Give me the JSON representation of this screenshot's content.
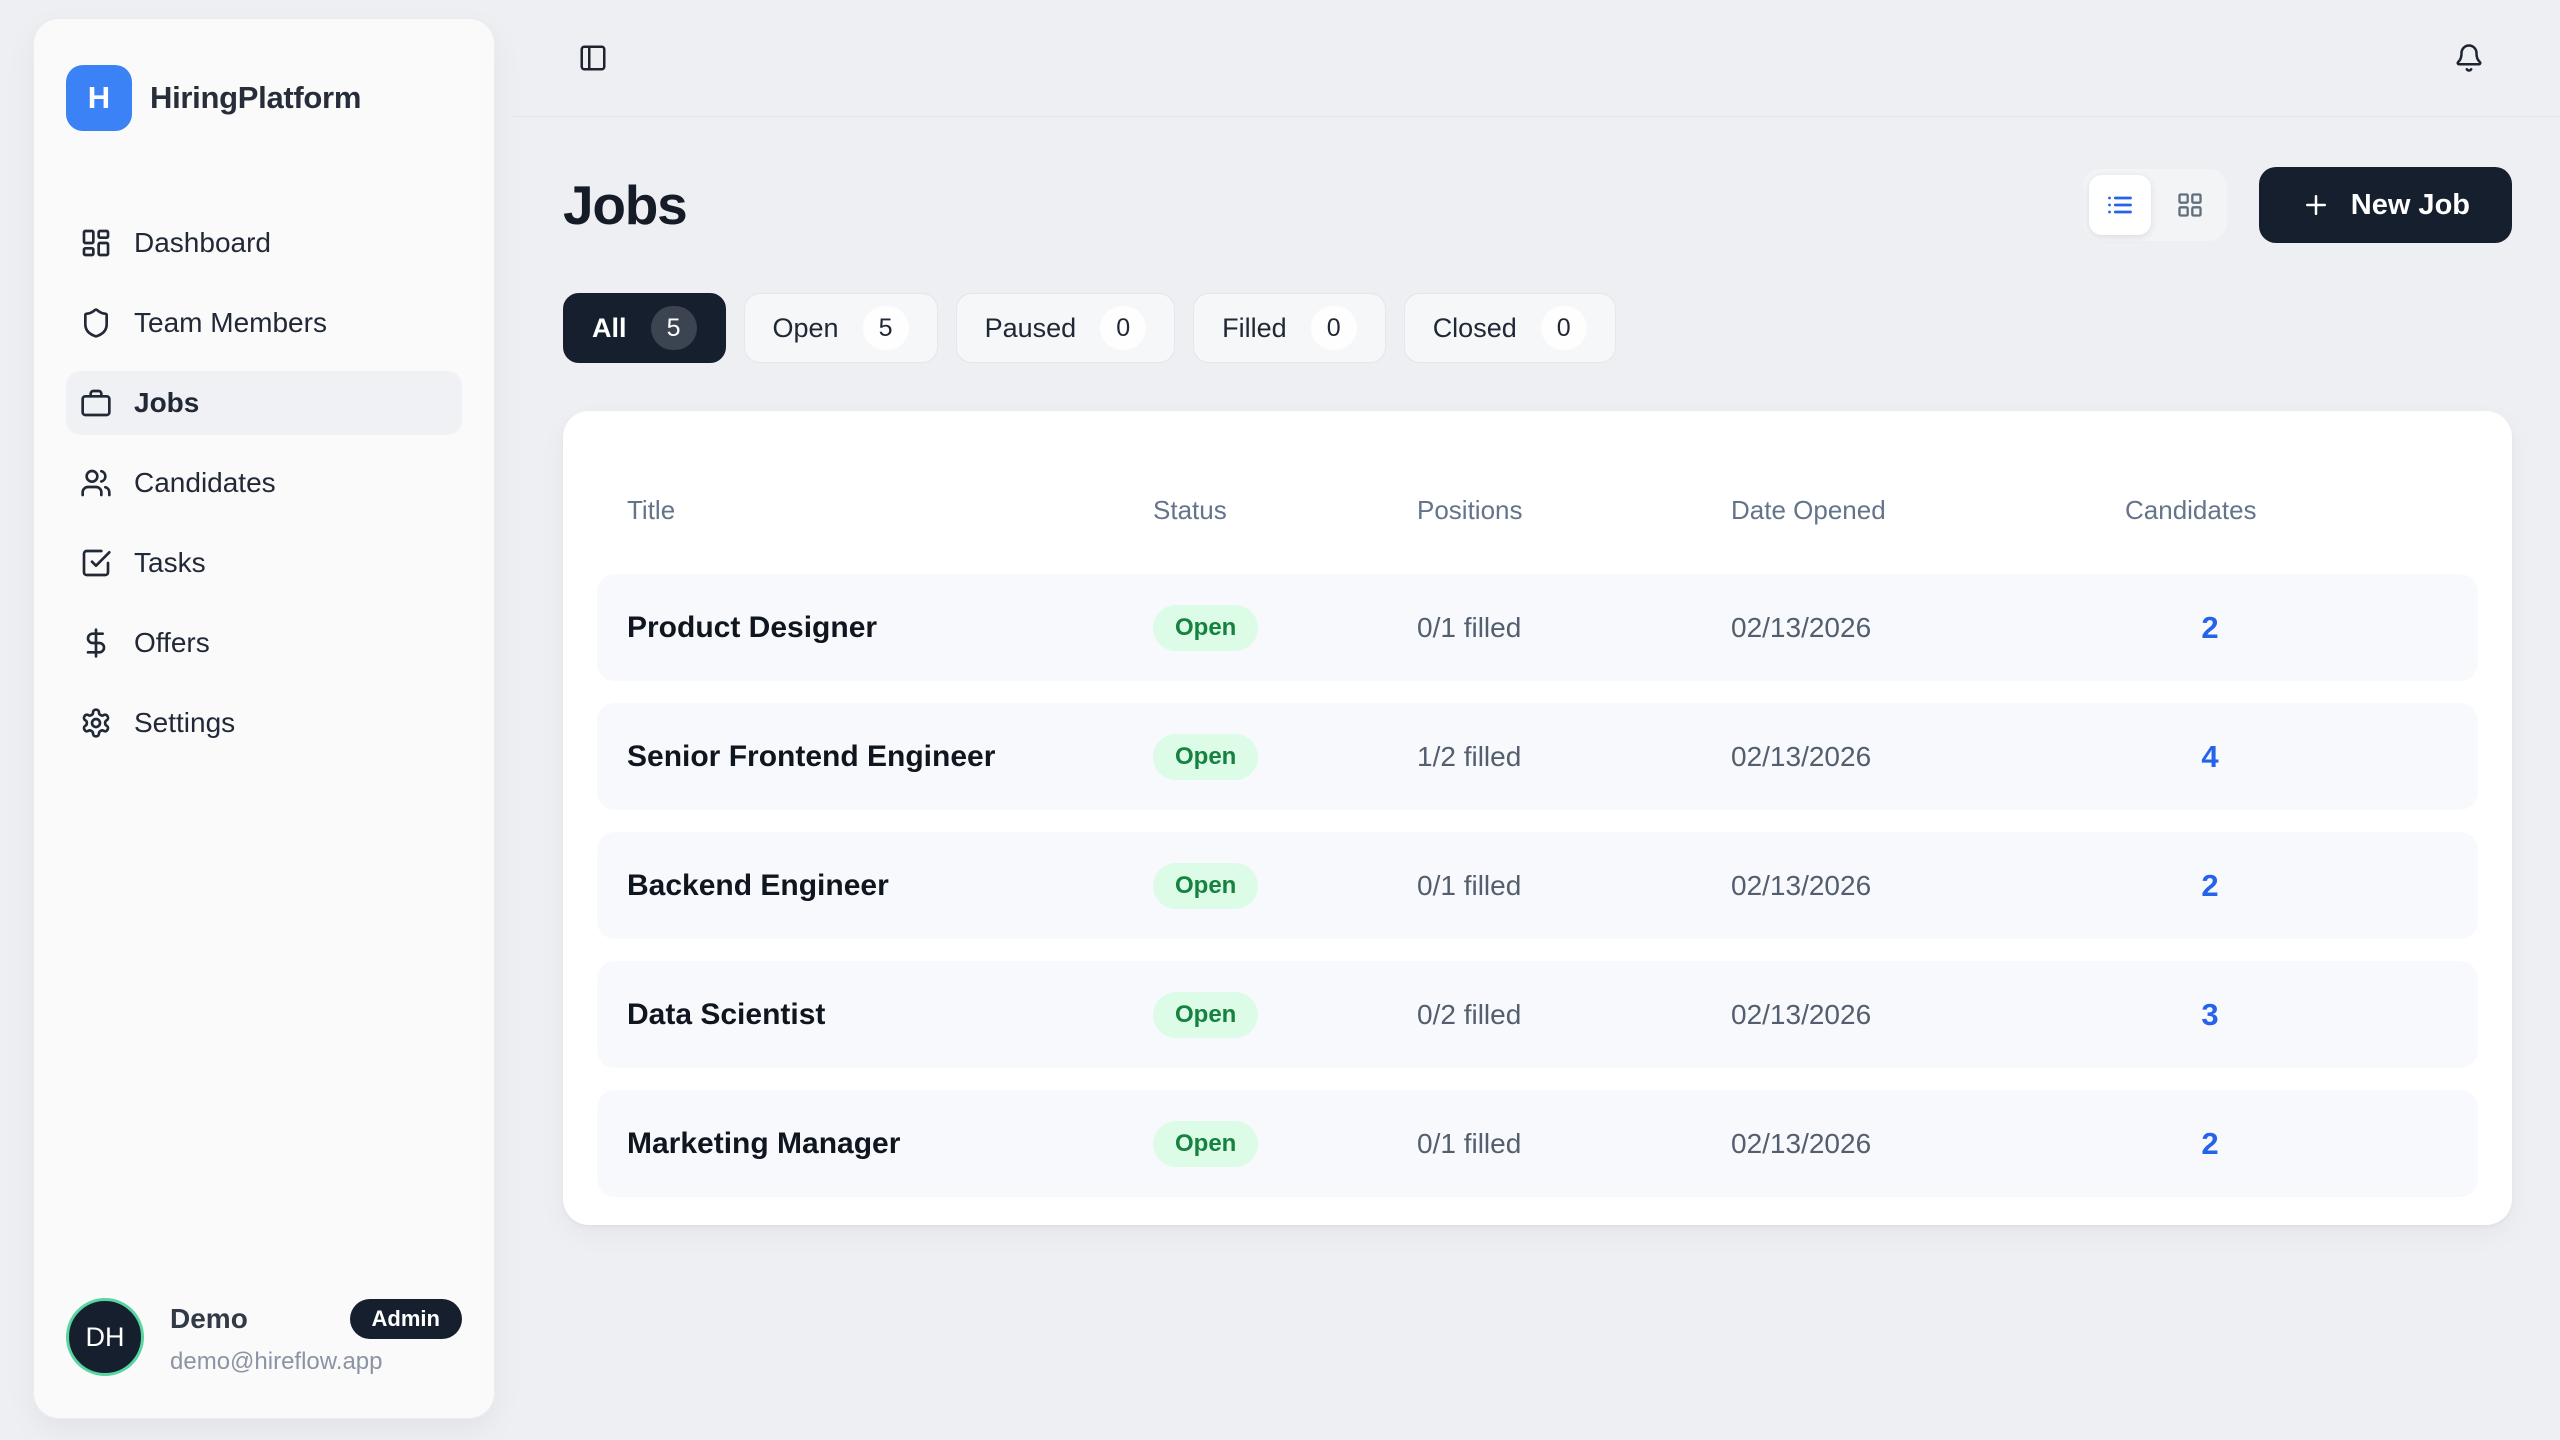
{
  "app": {
    "name": "HiringPlatform",
    "logo_letter": "H"
  },
  "topbar": {
    "sidebar_toggle_icon": "panel-left-icon",
    "notifications_icon": "bell-icon"
  },
  "sidebar": {
    "items": [
      {
        "label": "Dashboard",
        "icon": "dashboard-icon",
        "active": false
      },
      {
        "label": "Team Members",
        "icon": "shield-icon",
        "active": false
      },
      {
        "label": "Jobs",
        "icon": "briefcase-icon",
        "active": true
      },
      {
        "label": "Candidates",
        "icon": "users-icon",
        "active": false
      },
      {
        "label": "Tasks",
        "icon": "tasks-icon",
        "active": false
      },
      {
        "label": "Offers",
        "icon": "dollar-icon",
        "active": false
      },
      {
        "label": "Settings",
        "icon": "settings-icon",
        "active": false
      }
    ],
    "user": {
      "initials": "DH",
      "name": "Demo",
      "role_badge": "Admin",
      "email": "demo@hireflow.app"
    }
  },
  "page": {
    "title": "Jobs",
    "view_toggle": {
      "list_icon": "list-icon",
      "grid_icon": "grid-icon",
      "active_view": "list"
    },
    "new_job": {
      "label": "New Job",
      "icon": "plus-icon"
    },
    "filters": [
      {
        "label": "All",
        "count": "5",
        "active": true
      },
      {
        "label": "Open",
        "count": "5",
        "active": false
      },
      {
        "label": "Paused",
        "count": "0",
        "active": false
      },
      {
        "label": "Filled",
        "count": "0",
        "active": false
      },
      {
        "label": "Closed",
        "count": "0",
        "active": false
      }
    ],
    "table": {
      "columns": [
        "Title",
        "Status",
        "Positions",
        "Date Opened",
        "Candidates"
      ],
      "rows": [
        {
          "title": "Product Designer",
          "status": "Open",
          "positions": "0/1 filled",
          "date_opened": "02/13/2026",
          "candidates": "2"
        },
        {
          "title": "Senior Frontend Engineer",
          "status": "Open",
          "positions": "1/2 filled",
          "date_opened": "02/13/2026",
          "candidates": "4"
        },
        {
          "title": "Backend Engineer",
          "status": "Open",
          "positions": "0/1 filled",
          "date_opened": "02/13/2026",
          "candidates": "2"
        },
        {
          "title": "Data Scientist",
          "status": "Open",
          "positions": "0/2 filled",
          "date_opened": "02/13/2026",
          "candidates": "3"
        },
        {
          "title": "Marketing Manager",
          "status": "Open",
          "positions": "0/1 filled",
          "date_opened": "02/13/2026",
          "candidates": "2"
        }
      ]
    }
  },
  "colors": {
    "page_bg": "#edeff2",
    "brand_blue": "#3b82f6",
    "navy": "#161f2e",
    "accent_blue": "#2563eb",
    "status_open_bg": "#dcfce7",
    "status_open_text": "#16823f",
    "avatar_ring": "#57d6a1"
  }
}
